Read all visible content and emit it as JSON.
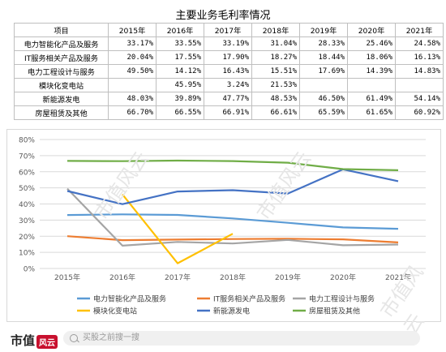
{
  "table": {
    "title": "主要业务毛利率情况",
    "headers": [
      "项目",
      "2015年",
      "2016年",
      "2017年",
      "2018年",
      "2019年",
      "2020年",
      "2021年"
    ],
    "rows": [
      {
        "label": "电力智能化产品及服务",
        "cells": [
          "33.17%",
          "33.55%",
          "33.19%",
          "31.04%",
          "28.33%",
          "25.46%",
          "24.58%"
        ]
      },
      {
        "label": "IT服务相关产品及服务",
        "cells": [
          "20.04%",
          "17.55%",
          "17.90%",
          "18.27%",
          "18.44%",
          "18.06%",
          "16.13%"
        ]
      },
      {
        "label": "电力工程设计与服务",
        "cells": [
          "49.50%",
          "14.12%",
          "16.43%",
          "15.51%",
          "17.69%",
          "14.39%",
          "14.83%"
        ]
      },
      {
        "label": "模块化变电站",
        "cells": [
          "",
          "45.95%",
          "3.24%",
          "21.53%",
          "",
          "",
          ""
        ]
      },
      {
        "label": "新能源发电",
        "cells": [
          "48.03%",
          "39.89%",
          "47.77%",
          "48.53%",
          "46.50%",
          "61.49%",
          "54.14%"
        ]
      },
      {
        "label": "房屋租赁及其他",
        "cells": [
          "66.70%",
          "66.55%",
          "66.91%",
          "66.61%",
          "65.59%",
          "61.65%",
          "60.92%"
        ]
      }
    ]
  },
  "chart_data": {
    "type": "line",
    "x": [
      "2015年",
      "2016年",
      "2017年",
      "2018年",
      "2019年",
      "2020年",
      "2021年"
    ],
    "y_ticks": [
      "0%",
      "10%",
      "20%",
      "30%",
      "40%",
      "50%",
      "60%",
      "70%",
      "80%"
    ],
    "ylim": [
      0,
      80
    ],
    "grid": true,
    "legend_position": "bottom",
    "series": [
      {
        "name": "电力智能化产品及服务",
        "color": "#5b9bd5",
        "values": [
          33.17,
          33.55,
          33.19,
          31.04,
          28.33,
          25.46,
          24.58
        ]
      },
      {
        "name": "IT服务相关产品及服务",
        "color": "#ed7d31",
        "values": [
          20.04,
          17.55,
          17.9,
          18.27,
          18.44,
          18.06,
          16.13
        ]
      },
      {
        "name": "电力工程设计与服务",
        "color": "#a5a5a5",
        "values": [
          49.5,
          14.12,
          16.43,
          15.51,
          17.69,
          14.39,
          14.83
        ]
      },
      {
        "name": "模块化变电站",
        "color": "#ffc000",
        "values": [
          null,
          45.95,
          3.24,
          21.53,
          null,
          null,
          null
        ]
      },
      {
        "name": "新能源发电",
        "color": "#4472c4",
        "values": [
          48.03,
          39.89,
          47.77,
          48.53,
          46.5,
          61.49,
          54.14
        ]
      },
      {
        "name": "房屋租赁及其他",
        "color": "#70ad47",
        "values": [
          66.7,
          66.55,
          66.91,
          66.61,
          65.59,
          61.65,
          60.92
        ]
      }
    ]
  },
  "watermark": {
    "text": "市值风云"
  },
  "footer": {
    "brand": "市值",
    "brand_seal": "风云",
    "search_placeholder": "买股之前搜一搜"
  }
}
